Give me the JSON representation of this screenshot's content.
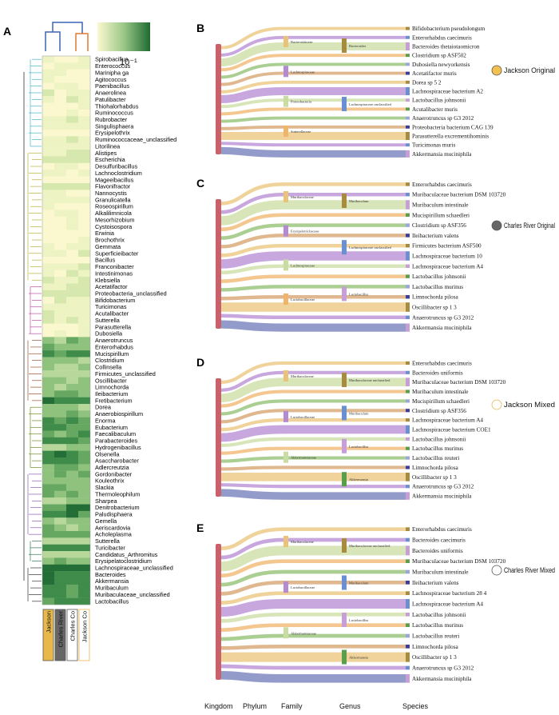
{
  "panels": {
    "A": "A",
    "B": "B",
    "C": "C",
    "D": "D",
    "E": "E"
  },
  "colorbar": {
    "label": "10⁻¹"
  },
  "heatmap": {
    "genera": [
      "Spirobacillus",
      "Enterococcus",
      "Marinipha ga",
      "Agitococcus",
      "Paenibacillus",
      "Anaerolinea",
      "Patulibacter",
      "Thiohalorhabdus",
      "Ruminococcus",
      "Rubrobacter",
      "Singulisphaera",
      "Erysipelothrix",
      "Ruminococcaceae_unclassified",
      "Litorilinea",
      "Alistipes",
      "Escherichia",
      "Desulfuribacillus",
      "Lachnoclostridium",
      "Mageeibacillus",
      "Flavonifractor",
      "Nannocystis",
      "Granulicatella",
      "Roseospirillum",
      "Alkalilimnicola",
      "Mesorhizobium",
      "Cystoisospora",
      "Erwinia",
      "Brochothrix",
      "Gemmata",
      "Superficieibacter",
      "Bacillus",
      "Franconibacter",
      "Intestinimonas",
      "Klebsiella",
      "Acetatifactor",
      "Proteobacteria_unclassified",
      "Bifidobacterium",
      "Turicimonas",
      "Acutalibacter",
      "Sutterella",
      "Parasutterella",
      "Dubosiella",
      "Anaerotruncus",
      "Enterorhabdus",
      "Mucispirillum",
      "Clostridium",
      "Collinsella",
      "Firmicutes_unclassified",
      "Oscillibacter",
      "Limnochorda",
      "Ileibacterium",
      "Fretibacterium",
      "Dorea",
      "Anaerobiospirillum",
      "Enorma",
      "Eubacterium",
      "Faecalibaculum",
      "Parabacteroides",
      "Hydrogenibacillus",
      "Olsenella",
      "Asaccharobacter",
      "Adlercreutzia",
      "Gordonibacter",
      "Kouleothrix",
      "Slackia",
      "Thermoleophilum",
      "Sharpea",
      "Denitrobacterium",
      "Paludisphaera",
      "Gemella",
      "Aeriscardovia",
      "Acholeplasma",
      "Sutterella",
      "Turicibacter",
      "Candidatus_Arthromitus",
      "Erysipelatoclostridium",
      "Lachnospiraceae_unclassified",
      "Bacteroides",
      "Akkermansia",
      "Muribaculum",
      "Muribaculaceae_unclassified",
      "Lactobacillus"
    ],
    "groups": [
      "Jackson",
      "Charles River",
      "Charles Co",
      "Jackson Co"
    ],
    "group_colors": [
      "#e8b84a",
      "#666666",
      "#ffffff",
      "#ffffff"
    ]
  },
  "axis": {
    "levels": [
      "Kingdom",
      "Phylum",
      "Family",
      "Genus",
      "Species"
    ]
  },
  "sankeys": [
    {
      "legend": "Jackson Original",
      "legend_color": "#f3c14f",
      "species": [
        "Bifidobacterium pseudolongum",
        "Enterorhabdus caecimuris",
        "Bacteroides thetaiotaomicron",
        "Clostridium sp ASF502",
        "Dubosiella newyorkensis",
        "Acetatifactor muris",
        "Dorea sp 5 2",
        "Lachnospiraceae bacterium A2",
        "Lactobacillus johnsonii",
        "Acutalibacter muris",
        "Anaerotruncus sp G3 2012",
        "Proteobacteria bacterium CAG 139",
        "Parasutterella excrementihominis",
        "Turicimonas muris",
        "Akkermansia muciniphila"
      ],
      "families": [
        "Bacteroidaceae",
        "Lachnospiraceae",
        "Proteobacteria",
        "Sutterellaceae"
      ],
      "genera": [
        "Bacteroides",
        "Lachnospiraceae unclassified"
      ]
    },
    {
      "legend": "Charles River Original",
      "legend_color": "#666666",
      "species": [
        "Enterorhabdus caecimuris",
        "Muribaculaceae bacterium DSM 103720",
        "Muribaculum intestinale",
        "Mucispirillum schaedleri",
        "Clostridium sp ASF356",
        "Ileibacterium valens",
        "Firmicutes bacterium ASF500",
        "Lachnospiraceae bacterium 10",
        "Lachnospiraceae bacterium A4",
        "Lactobacillus johnsonii",
        "Lactobacillus murinus",
        "Limnochorda pilosa",
        "Oscillibacter sp 1 3",
        "Anaerotruncus sp G3 2012",
        "Akkermansia muciniphila"
      ],
      "families": [
        "Muribaculaceae",
        "Erysipelotrichaceae",
        "Lachnospiraceae",
        "Lactobacillaceae"
      ],
      "genera": [
        "Muribaculum",
        "Lachnospiraceae unclassified",
        "Lactobacillus"
      ]
    },
    {
      "legend": "Jackson Mixed",
      "legend_color": "#ffffff",
      "species": [
        "Enterorhabdus caecimuris",
        "Bacteroides uniformis",
        "Muribaculaceae bacterium DSM 103720",
        "Muribaculum intestinale",
        "Mucispirillum schaedleri",
        "Clostridium sp ASF356",
        "Lachnospiraceae bacterium A4",
        "Lachnospiraceae bacterium COE1",
        "Lactobacillus johnsonii",
        "Lactobacillus murinus",
        "Lactobacillus reuteri",
        "Limnochorda pilosa",
        "Oscillibacter sp 1 3",
        "Anaerotruncus sp G3 2012",
        "Akkermansia muciniphila"
      ],
      "families": [
        "Muribaculaceae",
        "Lactobacillaceae",
        "Akkermansiaceae"
      ],
      "genera": [
        "Muribaculaceae unclassified",
        "Muribaculum",
        "Lactobacillus",
        "Akkermansia"
      ]
    },
    {
      "legend": "Charles River Mixed",
      "legend_color": "#ffffff",
      "species": [
        "Enterorhabdus caecimuris",
        "Bacteroides caecimuris",
        "Bacteroides uniformis",
        "Muribaculaceae bacterium DSM 103720",
        "Muribaculum intestinale",
        "Ileibacterium valens",
        "Lachnospiraceae bacterium 28 4",
        "Lachnospiraceae bacterium A4",
        "Lactobacillus johnsonii",
        "Lactobacillus murinus",
        "Lactobacillus reuteri",
        "Limnochorda pilosa",
        "Oscillibacter sp 1 3",
        "Anaerotruncus sp G3 2012",
        "Akkermansia muciniphila"
      ],
      "families": [
        "Muribaculaceae",
        "Lactobacillaceae",
        "Akkermansiaceae"
      ],
      "genera": [
        "Muribaculaceae unclassified",
        "Muribaculum",
        "Lactobacillus",
        "Akkermansia"
      ]
    }
  ]
}
